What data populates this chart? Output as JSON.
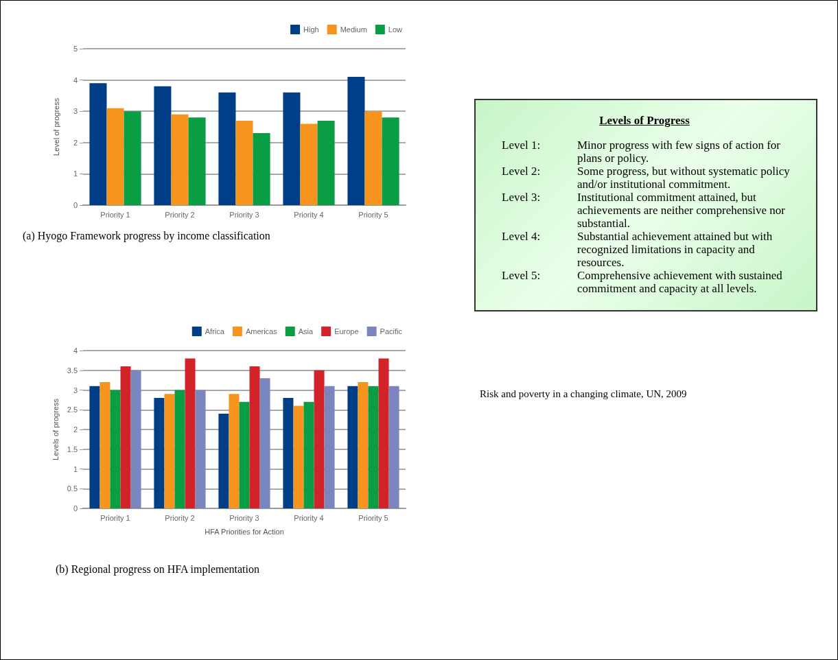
{
  "chart_data": [
    {
      "type": "bar",
      "ylabel": "Level of progress",
      "categories": [
        "Priority 1",
        "Priority 2",
        "Priority 3",
        "Priority 4",
        "Priority 5"
      ],
      "series": [
        {
          "name": "High",
          "color": "#003f87",
          "values": [
            3.9,
            3.8,
            3.6,
            3.6,
            4.1
          ]
        },
        {
          "name": "Medium",
          "color": "#f7941d",
          "values": [
            3.1,
            2.9,
            2.7,
            2.6,
            3.0
          ]
        },
        {
          "name": "Low",
          "color": "#0a9e44",
          "values": [
            3.0,
            2.8,
            2.3,
            2.7,
            2.8
          ]
        }
      ],
      "ylim": [
        0,
        5
      ],
      "yticks": [
        0,
        1,
        2,
        3,
        4,
        5
      ],
      "grid": "y",
      "legend": "top right",
      "annotations": [
        "(a) Hyogo Framework progress by income classification"
      ]
    },
    {
      "type": "bar",
      "ylabel": "Levels of progress",
      "xlabel": "HFA Priorities for Action",
      "categories": [
        "Priority 1",
        "Priority 2",
        "Priority 3",
        "Priority 4",
        "Priority 5"
      ],
      "series": [
        {
          "name": "Africa",
          "color": "#003f87",
          "values": [
            3.1,
            2.8,
            2.4,
            2.8,
            3.1
          ]
        },
        {
          "name": "Americas",
          "color": "#f7941d",
          "values": [
            3.2,
            2.9,
            2.9,
            2.6,
            3.2
          ]
        },
        {
          "name": "Asia",
          "color": "#0a9e44",
          "values": [
            3.0,
            3.0,
            2.7,
            2.7,
            3.1
          ]
        },
        {
          "name": "Europe",
          "color": "#d2232a",
          "values": [
            3.6,
            3.8,
            3.6,
            3.5,
            3.8
          ]
        },
        {
          "name": "Pacific",
          "color": "#7b86bf",
          "values": [
            3.5,
            3.0,
            3.3,
            3.1,
            3.1
          ]
        }
      ],
      "ylim": [
        0,
        4
      ],
      "yticks": [
        0,
        0.5,
        1,
        1.5,
        2,
        2.5,
        3,
        3.5,
        4
      ],
      "grid": "y",
      "legend": "top right",
      "annotations": [
        "(b) Regional progress on HFA implementation"
      ]
    },
    {
      "type": "other",
      "title": "Levels of Progress",
      "annotations": [
        "Level 1:",
        "Minor progress with few signs of action for plans or policy.",
        "Level 2:",
        "Some progress, but without systematic policy and/or institutional commitment.",
        "Level 3:",
        "Institutional commitment attained, but achievements are neither comprehensive nor substantial.",
        "Level 4:",
        "Substantial achievement attained but with recognized limitations in capacity and resources.",
        "Level 5:",
        "Comprehensive achievement with sustained commitment and capacity at all levels.",
        "Risk and poverty in a changing climate, UN, 2009"
      ]
    }
  ]
}
